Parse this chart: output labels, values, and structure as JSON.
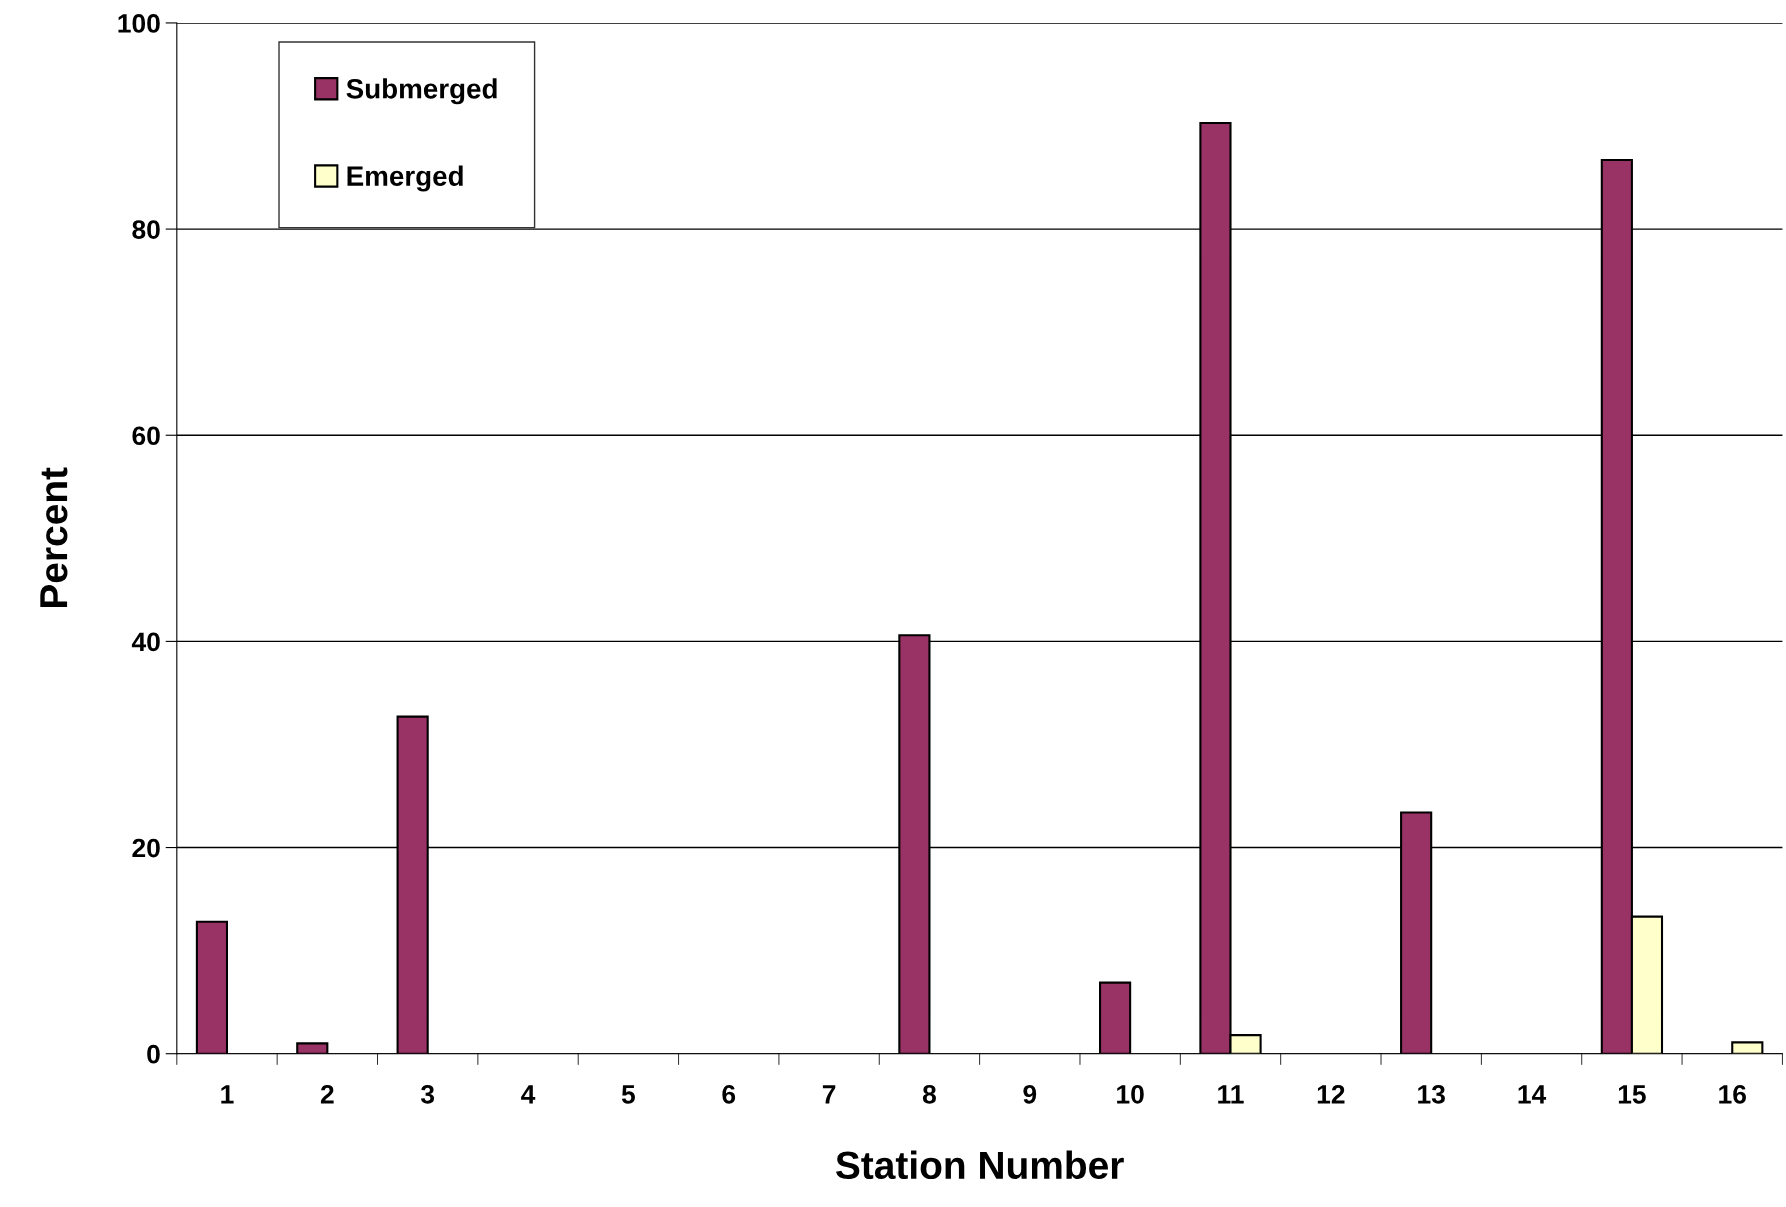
{
  "chart_data": {
    "type": "bar",
    "xlabel": "Station Number",
    "ylabel": "Percent",
    "categories": [
      "1",
      "2",
      "3",
      "4",
      "5",
      "6",
      "7",
      "8",
      "9",
      "10",
      "11",
      "12",
      "13",
      "14",
      "15",
      "16"
    ],
    "series": [
      {
        "name": "Submerged",
        "color": "#993366",
        "values": [
          12.8,
          1.0,
          32.7,
          null,
          null,
          null,
          null,
          40.6,
          null,
          6.9,
          90.3,
          null,
          23.4,
          null,
          86.7,
          null
        ]
      },
      {
        "name": "Emerged",
        "color": "#ffffcc",
        "values": [
          null,
          null,
          null,
          null,
          null,
          null,
          null,
          null,
          null,
          null,
          1.8,
          null,
          null,
          null,
          13.3,
          1.1
        ]
      }
    ],
    "ylim": [
      0,
      100
    ],
    "yticks": [
      0,
      20,
      40,
      60,
      80,
      100
    ],
    "grid": "y",
    "legend": "top left"
  }
}
